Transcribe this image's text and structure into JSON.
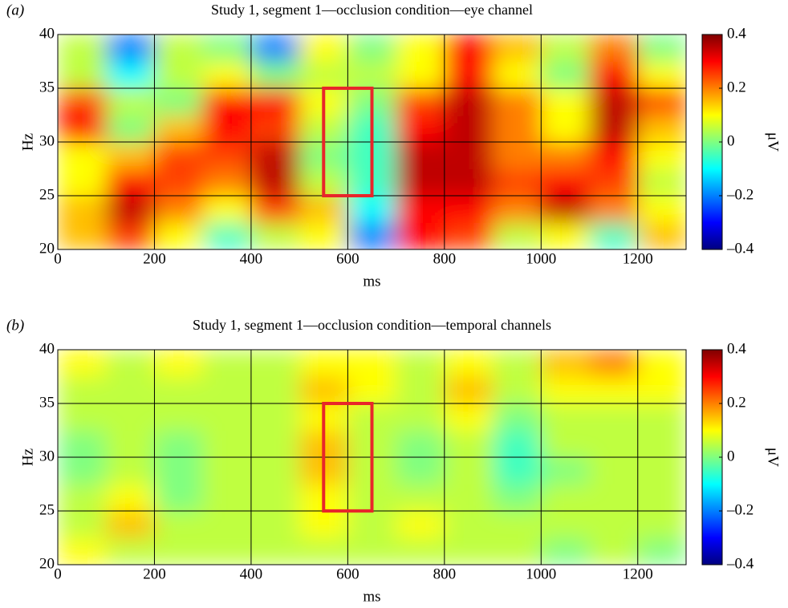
{
  "chart_data": [
    {
      "type": "heatmap",
      "panel": "(a)",
      "title": "Study 1, segment 1—occlusion condition—eye channel",
      "xlabel": "ms",
      "ylabel": "Hz",
      "colormap": "jet",
      "grid": true,
      "x": [
        50,
        150,
        250,
        350,
        450,
        550,
        650,
        750,
        850,
        950,
        1050,
        1150,
        1250
      ],
      "y": [
        21.25,
        23.75,
        26.25,
        28.75,
        31.25,
        33.75,
        36.25,
        38.75
      ],
      "values": [
        [
          0.15,
          0.25,
          0.1,
          -0.05,
          0.05,
          0.1,
          -0.2,
          0.3,
          0.25,
          0.05,
          0.1,
          -0.05,
          0.15
        ],
        [
          0.15,
          0.35,
          0.2,
          0.1,
          0.25,
          0.15,
          -0.1,
          0.3,
          0.3,
          0.2,
          0.35,
          0.2,
          0.1
        ],
        [
          0.1,
          0.3,
          0.25,
          0.2,
          0.35,
          0.05,
          -0.05,
          0.35,
          0.35,
          0.25,
          0.3,
          0.25,
          0.05
        ],
        [
          0.1,
          0.15,
          0.25,
          0.25,
          0.35,
          0.0,
          -0.05,
          0.35,
          0.35,
          0.2,
          0.2,
          0.3,
          0.1
        ],
        [
          0.3,
          0.0,
          0.15,
          0.3,
          0.25,
          0.05,
          -0.05,
          0.3,
          0.35,
          0.2,
          0.1,
          0.35,
          0.15
        ],
        [
          0.25,
          0.05,
          0.0,
          0.3,
          0.3,
          0.1,
          0.0,
          0.25,
          0.35,
          0.2,
          0.1,
          0.35,
          0.25
        ],
        [
          0.05,
          -0.1,
          0.05,
          0.1,
          0.0,
          0.05,
          0.05,
          0.1,
          0.3,
          0.1,
          0.0,
          0.3,
          0.1
        ],
        [
          0.05,
          -0.2,
          0.05,
          0.0,
          -0.2,
          0.1,
          0.0,
          0.1,
          0.3,
          0.15,
          0.05,
          0.2,
          0.0
        ]
      ],
      "xlim": [
        0,
        1300
      ],
      "xticks": [
        0,
        200,
        400,
        600,
        800,
        1000,
        1200
      ],
      "ylim": [
        20,
        40
      ],
      "yticks": [
        20,
        25,
        30,
        35,
        40
      ],
      "highlight": {
        "x": [
          550,
          650
        ],
        "y": [
          25,
          35
        ],
        "color": "#e8262a"
      },
      "colorbar": {
        "label": "μV",
        "lim": [
          -0.4,
          0.4
        ],
        "ticks": [
          0.4,
          0.2,
          0,
          {
            "value": -0.2,
            "label": "–0.2"
          },
          {
            "value": -0.4,
            "label": "–0.4"
          }
        ]
      }
    },
    {
      "type": "heatmap",
      "panel": "(b)",
      "title": "Study 1, segment 1—occlusion condition—temporal channels",
      "xlabel": "ms",
      "ylabel": "Hz",
      "colormap": "jet",
      "grid": true,
      "x": [
        50,
        150,
        250,
        350,
        450,
        550,
        650,
        750,
        850,
        950,
        1050,
        1150,
        1250
      ],
      "y": [
        21.25,
        23.75,
        26.25,
        28.75,
        31.25,
        33.75,
        36.25,
        38.75
      ],
      "values": [
        [
          0.1,
          0.05,
          0.05,
          0.05,
          0.05,
          0.05,
          0.05,
          0.05,
          0.05,
          0.05,
          0.0,
          0.05,
          0.0
        ],
        [
          0.05,
          0.15,
          0.05,
          0.05,
          0.05,
          0.1,
          0.05,
          0.1,
          0.05,
          0.05,
          0.05,
          0.05,
          0.05
        ],
        [
          0.05,
          0.1,
          0.0,
          0.05,
          0.05,
          0.1,
          0.05,
          0.05,
          0.05,
          0.0,
          0.05,
          0.05,
          0.05
        ],
        [
          0.0,
          0.05,
          0.0,
          0.05,
          0.05,
          0.15,
          0.05,
          0.0,
          0.05,
          -0.05,
          0.0,
          0.05,
          0.05
        ],
        [
          0.0,
          0.05,
          0.0,
          0.05,
          0.05,
          0.15,
          0.05,
          0.0,
          0.05,
          -0.05,
          0.05,
          0.05,
          0.05
        ],
        [
          0.05,
          0.05,
          0.05,
          0.05,
          0.05,
          0.1,
          0.05,
          0.05,
          0.1,
          0.0,
          0.05,
          0.05,
          0.05
        ],
        [
          0.05,
          0.05,
          0.05,
          0.05,
          0.05,
          0.15,
          0.1,
          0.05,
          0.15,
          0.05,
          0.1,
          0.1,
          0.1
        ],
        [
          0.1,
          0.05,
          0.1,
          0.05,
          0.05,
          0.1,
          0.1,
          0.05,
          0.1,
          0.05,
          0.15,
          0.2,
          0.1
        ]
      ],
      "xlim": [
        0,
        1300
      ],
      "xticks": [
        0,
        200,
        400,
        600,
        800,
        1000,
        1200
      ],
      "ylim": [
        20,
        40
      ],
      "yticks": [
        20,
        25,
        30,
        35,
        40
      ],
      "highlight": {
        "x": [
          550,
          650
        ],
        "y": [
          25,
          35
        ],
        "color": "#e8262a"
      },
      "colorbar": {
        "label": "μV",
        "lim": [
          -0.4,
          0.4
        ],
        "ticks": [
          0.4,
          0.2,
          0,
          {
            "value": -0.2,
            "label": "–0.2"
          },
          {
            "value": -0.4,
            "label": "–0.4"
          }
        ]
      }
    }
  ]
}
